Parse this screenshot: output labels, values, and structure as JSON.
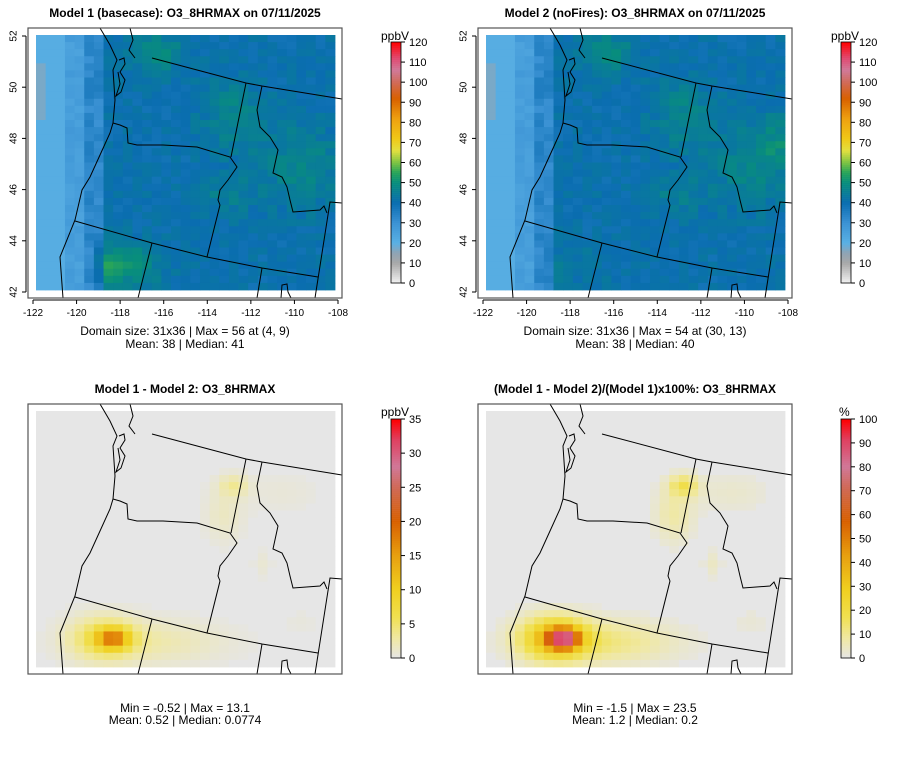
{
  "chart_data": [
    {
      "type": "heatmap",
      "title": "Model 1 (basecase): O3_8HRMAX on 07/11/2025",
      "stats_line1": "Domain size: 31x36 | Max = 56 at (4, 9)",
      "stats_line2": "Mean: 38 |  Median: 41",
      "grid": [
        31,
        36
      ],
      "max": 56,
      "mean": 38,
      "median": 41,
      "field": "model1",
      "xlim": [
        -122,
        -108
      ],
      "ylim": [
        42,
        52
      ],
      "x_ticks": [
        "-122",
        "-120",
        "-118",
        "-116",
        "-114",
        "-112",
        "-110",
        "-108"
      ],
      "y_ticks": [
        "42",
        "44",
        "46",
        "48",
        "50",
        "52"
      ],
      "colorbar": {
        "unit": "ppbV",
        "range": [
          0,
          120
        ],
        "ticks": [
          "0",
          "10",
          "20",
          "30",
          "40",
          "50",
          "60",
          "70",
          "80",
          "90",
          "100",
          "110",
          "120"
        ]
      }
    },
    {
      "type": "heatmap",
      "title": "Model 2 (noFires): O3_8HRMAX on 07/11/2025",
      "stats_line1": "Domain size: 31x36 | Max = 54 at (30, 13)",
      "stats_line2": "Mean: 38 |  Median: 40",
      "grid": [
        31,
        36
      ],
      "max": 54,
      "mean": 38,
      "median": 40,
      "field": "model2",
      "xlim": [
        -122,
        -108
      ],
      "ylim": [
        42,
        52
      ],
      "x_ticks": [
        "-122",
        "-120",
        "-118",
        "-116",
        "-114",
        "-112",
        "-110",
        "-108"
      ],
      "y_ticks": [
        "42",
        "44",
        "46",
        "48",
        "50",
        "52"
      ],
      "colorbar": {
        "unit": "ppbV",
        "range": [
          0,
          120
        ],
        "ticks": [
          "0",
          "10",
          "20",
          "30",
          "40",
          "50",
          "60",
          "70",
          "80",
          "90",
          "100",
          "110",
          "120"
        ]
      }
    },
    {
      "type": "heatmap",
      "title": "Model 1 - Model 2: O3_8HRMAX",
      "stats_line1": "Min = -0.52 | Max = 13.1",
      "stats_line2": "Mean: 0.52 |  Median: 0.0774",
      "min": -0.52,
      "max": 13.1,
      "mean": 0.52,
      "median": 0.0774,
      "field": "diff",
      "colorbar": {
        "unit": "ppbV",
        "range": [
          0,
          35
        ],
        "ticks": [
          "0",
          "5",
          "10",
          "15",
          "20",
          "25",
          "30",
          "35"
        ]
      }
    },
    {
      "type": "heatmap",
      "title": "(Model 1 - Model 2)/(Model 1)x100%: O3_8HRMAX",
      "stats_line1": "Min = -1.5 | Max = 23.5",
      "stats_line2": "Mean: 1.2 |  Median: 0.2",
      "min": -1.5,
      "max": 23.5,
      "mean": 1.2,
      "median": 0.2,
      "field": "pct",
      "colorbar": {
        "unit": "%",
        "range": [
          0,
          100
        ],
        "ticks": [
          "0",
          "10",
          "20",
          "30",
          "40",
          "50",
          "60",
          "70",
          "80",
          "90",
          "100"
        ]
      }
    }
  ],
  "colors": {
    "frame": "#555555",
    "background_missing": "#e6e6e6"
  }
}
